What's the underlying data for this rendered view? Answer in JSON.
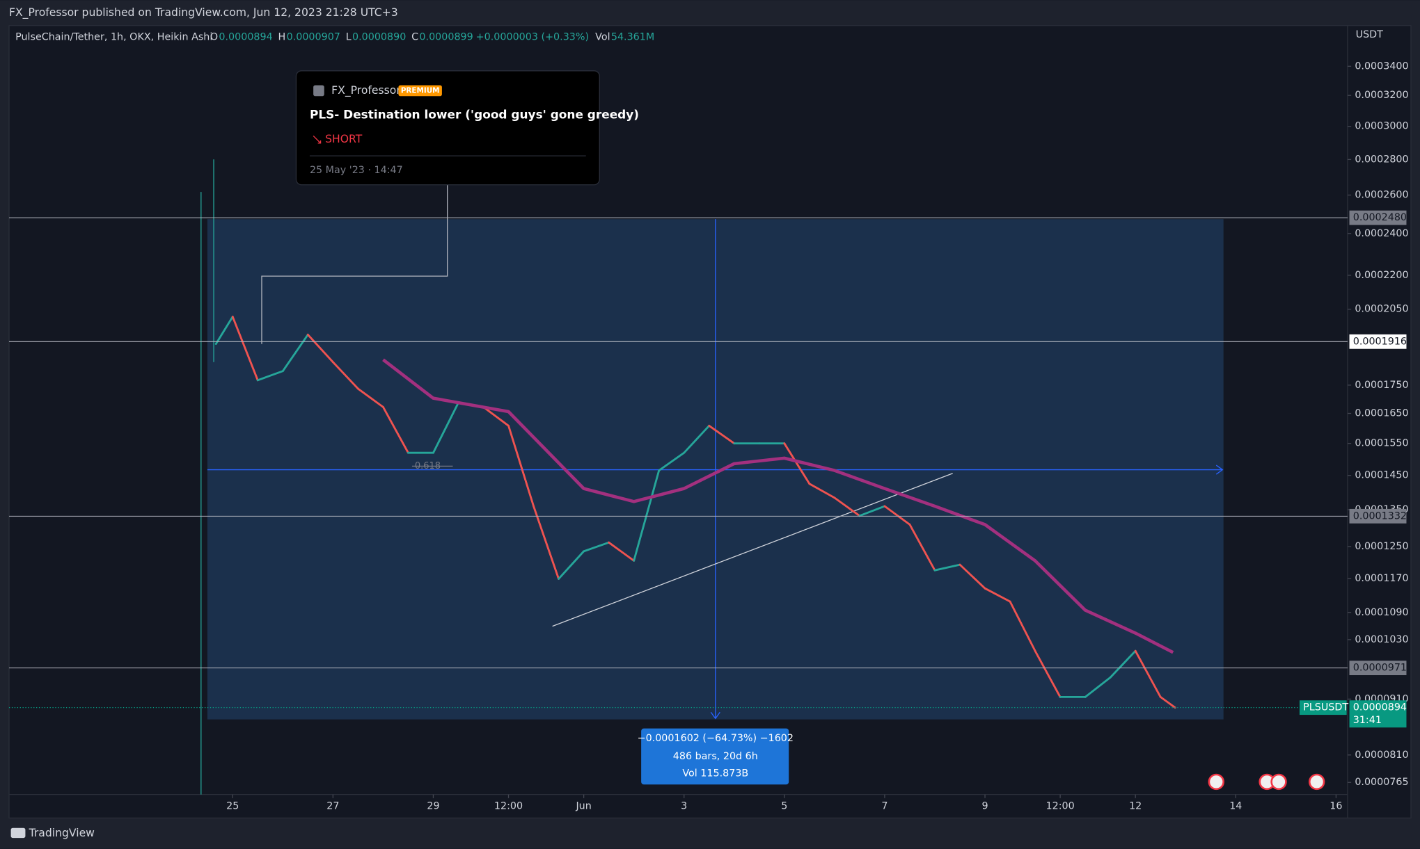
{
  "header": {
    "published": "FX_Professor published on TradingView.com, Jun 12, 2023 21:28 UTC+3",
    "brand": "TradingView"
  },
  "chart_data": {
    "type": "line",
    "symbol": "PulseChain/Tether, 1h, OKX, Heikin Ashi",
    "ohlc": [
      {
        "key": "O",
        "text": "0.0000894"
      },
      {
        "key": "H",
        "text": "0.0000907"
      },
      {
        "key": "L",
        "text": "0.0000890"
      },
      {
        "key": "C",
        "text": "0.0000899"
      }
    ],
    "change": "+0.0000003 (+0.33%)",
    "volume_key": "Vol",
    "volume": "54.361M",
    "currency": "USDT",
    "log_scale": true,
    "up_color": "#26a69a",
    "down_color": "#ef5350",
    "ylim": [
      7.46e-05,
      0.0003687
    ],
    "yticks": [
      {
        "value": 0.00034,
        "label": "0.0003400"
      },
      {
        "value": 0.00032,
        "label": "0.0003200"
      },
      {
        "value": 0.0003,
        "label": "0.0003000"
      },
      {
        "value": 0.00028,
        "label": "0.0002800"
      },
      {
        "value": 0.00026,
        "label": "0.0002600"
      },
      {
        "value": 0.00024,
        "label": "0.0002400"
      },
      {
        "value": 0.00022,
        "label": "0.0002200"
      },
      {
        "value": 0.000205,
        "label": "0.0002050"
      },
      {
        "value": 0.000175,
        "label": "0.0001750"
      },
      {
        "value": 0.000165,
        "label": "0.0001650"
      },
      {
        "value": 0.000155,
        "label": "0.0001550"
      },
      {
        "value": 0.000145,
        "label": "0.0001450"
      },
      {
        "value": 0.000135,
        "label": "0.0001350"
      },
      {
        "value": 0.000125,
        "label": "0.0001250"
      },
      {
        "value": 0.000117,
        "label": "0.0001170"
      },
      {
        "value": 0.000109,
        "label": "0.0001090"
      },
      {
        "value": 0.000103,
        "label": "0.0001030"
      },
      {
        "value": 9.1e-05,
        "label": "0.0000910"
      },
      {
        "value": 8.1e-05,
        "label": "0.0000810"
      },
      {
        "value": 7.65e-05,
        "label": "0.0000765"
      }
    ],
    "xlim": [
      "2023-05-20 13:00",
      "2023-06-16 05:30"
    ],
    "xticks": [
      {
        "value": "2023-05-25 00:00",
        "label": "25"
      },
      {
        "value": "2023-05-27 00:00",
        "label": "27"
      },
      {
        "value": "2023-05-29 00:00",
        "label": "29"
      },
      {
        "value": "2023-05-30 12:00",
        "label": "12:00"
      },
      {
        "value": "2023-06-01 00:00",
        "label": "Jun"
      },
      {
        "value": "2023-06-03 00:00",
        "label": "3"
      },
      {
        "value": "2023-06-05 00:00",
        "label": "5"
      },
      {
        "value": "2023-06-07 00:00",
        "label": "7"
      },
      {
        "value": "2023-06-09 00:00",
        "label": "9"
      },
      {
        "value": "2023-06-10 12:00",
        "label": "12:00"
      },
      {
        "value": "2023-06-12 00:00",
        "label": "12"
      },
      {
        "value": "2023-06-14 00:00",
        "label": "14"
      },
      {
        "value": "2023-06-16 00:00",
        "label": "16"
      }
    ],
    "series": [
      {
        "name": "PLSUSDT",
        "color": "#089981",
        "x": [
          "2023-05-24 16:00",
          "2023-05-25 00:00",
          "2023-05-25 12:00",
          "2023-05-26 00:00",
          "2023-05-26 12:00",
          "2023-05-27 00:00",
          "2023-05-27 12:00",
          "2023-05-28 00:00",
          "2023-05-28 12:00",
          "2023-05-29 00:00",
          "2023-05-29 12:00",
          "2023-05-30 00:00",
          "2023-05-30 12:00",
          "2023-05-31 00:00",
          "2023-05-31 12:00",
          "2023-06-01 00:00",
          "2023-06-01 12:00",
          "2023-06-02 00:00",
          "2023-06-02 12:00",
          "2023-06-03 00:00",
          "2023-06-03 12:00",
          "2023-06-04 00:00",
          "2023-06-04 12:00",
          "2023-06-05 00:00",
          "2023-06-05 12:00",
          "2023-06-06 00:00",
          "2023-06-06 12:00",
          "2023-06-07 00:00",
          "2023-06-07 12:00",
          "2023-06-08 00:00",
          "2023-06-08 12:00",
          "2023-06-09 00:00",
          "2023-06-09 12:00",
          "2023-06-10 00:00",
          "2023-06-10 12:00",
          "2023-06-11 00:00",
          "2023-06-11 12:00",
          "2023-06-12 00:00",
          "2023-06-12 12:00",
          "2023-06-12 19:00"
        ],
        "values": [
          0.0001907,
          0.0002018,
          0.0001768,
          0.0001802,
          0.0001944,
          0.0001836,
          0.0001737,
          0.0001672,
          0.000152,
          0.000152,
          0.0001687,
          0.0001672,
          0.0001608,
          0.000136,
          0.0001169,
          0.0001238,
          0.0001261,
          0.0001214,
          0.0001465,
          0.000152,
          0.0001608,
          0.000155,
          0.000155,
          0.000155,
          0.0001425,
          0.0001384,
          0.0001333,
          0.000136,
          0.0001309,
          0.000119,
          0.0001204,
          0.0001146,
          0.0001115,
          0.0001006,
          9.14e-05,
          9.14e-05,
          9.52e-05,
          0.0001006,
          9.14e-05,
          8.94e-05
        ]
      },
      {
        "color": "#a3307f",
        "x": [
          "2023-05-28 00:00",
          "2023-05-29 00:00",
          "2023-05-30 12:00",
          "2023-06-01 00:00",
          "2023-06-02 00:00",
          "2023-06-03 00:00",
          "2023-06-04 00:00",
          "2023-06-05 00:00",
          "2023-06-06 00:00",
          "2023-06-07 00:00",
          "2023-06-08 00:00",
          "2023-06-09 00:00",
          "2023-06-10 00:00",
          "2023-06-11 00:00",
          "2023-06-12 00:00",
          "2023-06-12 18:00"
        ],
        "values": [
          0.0001845,
          0.0001703,
          0.0001656,
          0.0001411,
          0.0001373,
          0.0001411,
          0.0001486,
          0.0001503,
          0.0001465,
          0.0001411,
          0.000136,
          0.0001309,
          0.0001214,
          0.0001095,
          0.0001044,
          0.0001003
        ]
      }
    ],
    "levels": [
      {
        "value": 0.000248,
        "label": "0.0002480",
        "style": "gray"
      },
      {
        "value": 0.0001916,
        "label": "0.0001916",
        "style": "white"
      },
      {
        "value": 0.0001332,
        "label": "0.0001332",
        "style": "gray"
      },
      {
        "value": 9.71e-05,
        "label": "0.0000971",
        "style": "gray"
      }
    ],
    "current": {
      "value": 8.94e-05,
      "label": "0.0000894",
      "countdown": "31:41"
    }
  },
  "idea": {
    "author": "FX_Professor",
    "badge": "PREMIUM",
    "title": "PLS- Destination lower ('good guys' gone greedy)",
    "direction": "SHORT",
    "date": "25 May '23 · 14:47"
  },
  "measure": {
    "change": "−0.0001602 (−64.73%) −1602",
    "bars": "486 bars, 20d 6h",
    "volume": "Vol 115.873B"
  },
  "fib_label": "0.618"
}
